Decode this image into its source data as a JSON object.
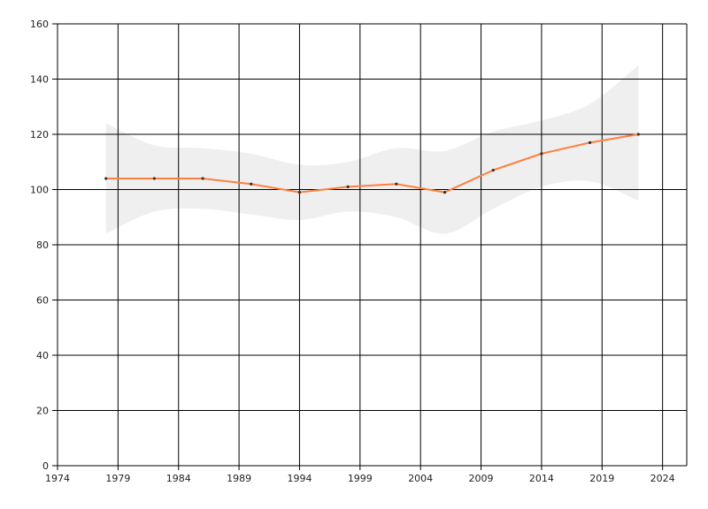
{
  "chart_data": {
    "type": "line",
    "title": "",
    "xlabel": "",
    "ylabel": "",
    "xlim": [
      1974,
      2026
    ],
    "ylim": [
      0,
      160
    ],
    "x_ticks": [
      "1974",
      "1979",
      "1984",
      "1989",
      "1994",
      "1999",
      "2004",
      "2009",
      "2014",
      "2019",
      "2024"
    ],
    "y_ticks": [
      "0",
      "20",
      "40",
      "60",
      "80",
      "100",
      "120",
      "140",
      "160"
    ],
    "grid": true,
    "legend": "none",
    "series": [
      {
        "x": [
          1978,
          1982,
          1986,
          1990,
          1994,
          1998,
          2002,
          2006,
          2010,
          2014,
          2018,
          2022
        ],
        "values": [
          104,
          104,
          104,
          102,
          99,
          101,
          102,
          99,
          107,
          113,
          117,
          120
        ],
        "color": "#ff7f3f"
      }
    ],
    "band": {
      "x": [
        1978,
        1982,
        1986,
        1990,
        1994,
        1998,
        2002,
        2006,
        2010,
        2014,
        2018,
        2022
      ],
      "lower": [
        84,
        92,
        93,
        91,
        89,
        92,
        90,
        84,
        93,
        101,
        103,
        96
      ],
      "upper": [
        124,
        116,
        115,
        113,
        109,
        110,
        115,
        114,
        121,
        125,
        131,
        145
      ],
      "color": "#efefef"
    },
    "colors": {
      "grid": "#000000",
      "axis": "#000000",
      "marker": "#333333"
    }
  }
}
